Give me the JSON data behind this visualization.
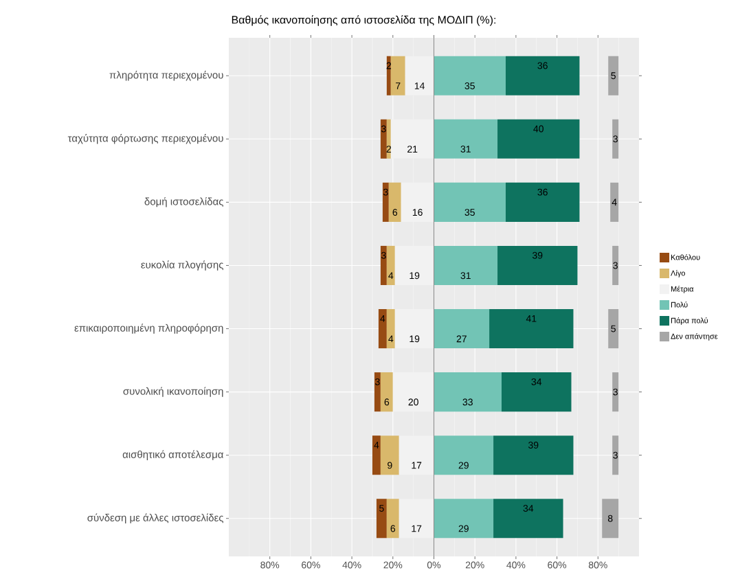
{
  "chart_data": {
    "type": "bar",
    "orientation": "horizontal",
    "title": "Βαθμός ικανοποίησης από ιστοσελίδα της ΜΟΔΙΠ (%):",
    "categories": [
      "πληρότητα περιεχομένου",
      "ταχύτητα φόρτωσης περιεχομένου",
      "δομή ιστοσελίδας",
      "ευκολία πλογήσης",
      "επικαιροποιημένη πληροφόρηση",
      "συνολική ικανοποίηση",
      "αισθητικό αποτέλεσμα",
      "σύνδεση με άλλες ιστοσελίδες"
    ],
    "series": [
      {
        "name": "Καθόλου",
        "color": "#974b13",
        "values": [
          2,
          3,
          3,
          3,
          4,
          3,
          4,
          5
        ],
        "base": [
          -23,
          -26,
          -25,
          -26,
          -27,
          -29,
          -30,
          -28
        ]
      },
      {
        "name": "Λίγο",
        "color": "#d9b86b",
        "values": [
          7,
          2,
          6,
          4,
          4,
          6,
          9,
          6
        ],
        "base": [
          -21,
          -23,
          -22,
          -23,
          -23,
          -26,
          -26,
          -23
        ]
      },
      {
        "name": "Μέτρια",
        "color": "#f2f2f2",
        "values": [
          14,
          21,
          16,
          19,
          19,
          20,
          17,
          17
        ],
        "base": [
          -14,
          -21,
          -16,
          -19,
          -19,
          -20,
          -17,
          -17
        ]
      },
      {
        "name": "Πολύ",
        "color": "#72c4b5",
        "values": [
          35,
          31,
          35,
          31,
          27,
          33,
          29,
          29
        ],
        "base": [
          0,
          0,
          0,
          0,
          0,
          0,
          0,
          0
        ]
      },
      {
        "name": "Πάρα πολύ",
        "color": "#0e735f",
        "values": [
          36,
          40,
          36,
          39,
          41,
          34,
          39,
          34
        ],
        "base": [
          35,
          31,
          35,
          31,
          27,
          33,
          29,
          29
        ]
      },
      {
        "name": "Δεν απάντησε",
        "color": "#a6a6a6",
        "values": [
          5,
          3,
          4,
          3,
          5,
          3,
          3,
          8
        ],
        "base": [
          85,
          87,
          86,
          87,
          85,
          87,
          87,
          82
        ]
      }
    ],
    "xlim": [
      -100,
      100
    ],
    "xticks": [
      {
        "value": -80,
        "label": "80%"
      },
      {
        "value": -60,
        "label": "60%"
      },
      {
        "value": -40,
        "label": "40%"
      },
      {
        "value": -20,
        "label": "20%"
      },
      {
        "value": 0,
        "label": "0%"
      },
      {
        "value": 20,
        "label": "20%"
      },
      {
        "value": 40,
        "label": "40%"
      },
      {
        "value": 60,
        "label": "60%"
      },
      {
        "value": 80,
        "label": "80%"
      }
    ],
    "ref_lines": [
      {
        "axis": "x",
        "value": 0,
        "color": "#8c8c8c"
      }
    ],
    "data_labels": true,
    "grid": true,
    "legend": "right"
  }
}
